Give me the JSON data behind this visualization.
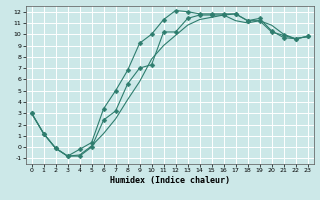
{
  "xlabel": "Humidex (Indice chaleur)",
  "ylabel": "",
  "bg_color": "#cce8e8",
  "grid_color": "#ffffff",
  "line_color": "#2e7d6e",
  "xlim": [
    -0.5,
    23.5
  ],
  "ylim": [
    -1.5,
    12.5
  ],
  "xticks": [
    0,
    1,
    2,
    3,
    4,
    5,
    6,
    7,
    8,
    9,
    10,
    11,
    12,
    13,
    14,
    15,
    16,
    17,
    18,
    19,
    20,
    21,
    22,
    23
  ],
  "yticks": [
    -1,
    0,
    1,
    2,
    3,
    4,
    5,
    6,
    7,
    8,
    9,
    10,
    11,
    12
  ],
  "line1_x": [
    0,
    1,
    2,
    3,
    4,
    5,
    6,
    7,
    8,
    9,
    10,
    11,
    12,
    13,
    14,
    15,
    16,
    17,
    18,
    19,
    20,
    21,
    22,
    23
  ],
  "line1_y": [
    3.0,
    1.2,
    -0.1,
    -0.8,
    -0.8,
    0.0,
    2.4,
    3.2,
    5.6,
    7.0,
    7.3,
    10.2,
    10.2,
    11.4,
    11.7,
    11.7,
    11.7,
    11.8,
    11.2,
    11.4,
    10.3,
    9.7,
    9.6,
    9.8
  ],
  "line2_x": [
    0,
    1,
    2,
    3,
    4,
    5,
    6,
    7,
    8,
    9,
    10,
    11,
    12,
    13,
    14,
    15,
    16,
    17,
    18,
    19,
    20,
    21,
    22,
    23
  ],
  "line2_y": [
    3.0,
    1.2,
    -0.1,
    -0.8,
    -0.2,
    0.4,
    3.4,
    5.0,
    6.8,
    9.2,
    10.0,
    11.3,
    12.1,
    12.0,
    11.8,
    11.8,
    11.8,
    11.8,
    11.2,
    11.2,
    10.2,
    9.9,
    9.6,
    9.8
  ],
  "line3_x": [
    0,
    1,
    2,
    3,
    4,
    5,
    6,
    7,
    8,
    9,
    10,
    11,
    12,
    13,
    14,
    15,
    16,
    17,
    18,
    19,
    20,
    21,
    22,
    23
  ],
  "line3_y": [
    3.0,
    1.2,
    -0.1,
    -0.8,
    -0.7,
    0.1,
    1.2,
    2.5,
    4.2,
    5.8,
    7.8,
    9.0,
    9.9,
    10.8,
    11.3,
    11.5,
    11.7,
    11.2,
    11.0,
    11.2,
    10.8,
    10.0,
    9.6,
    9.8
  ],
  "tick_fontsize": 4.5,
  "xlabel_fontsize": 6.0,
  "marker_size": 2.5,
  "line_width": 0.8
}
